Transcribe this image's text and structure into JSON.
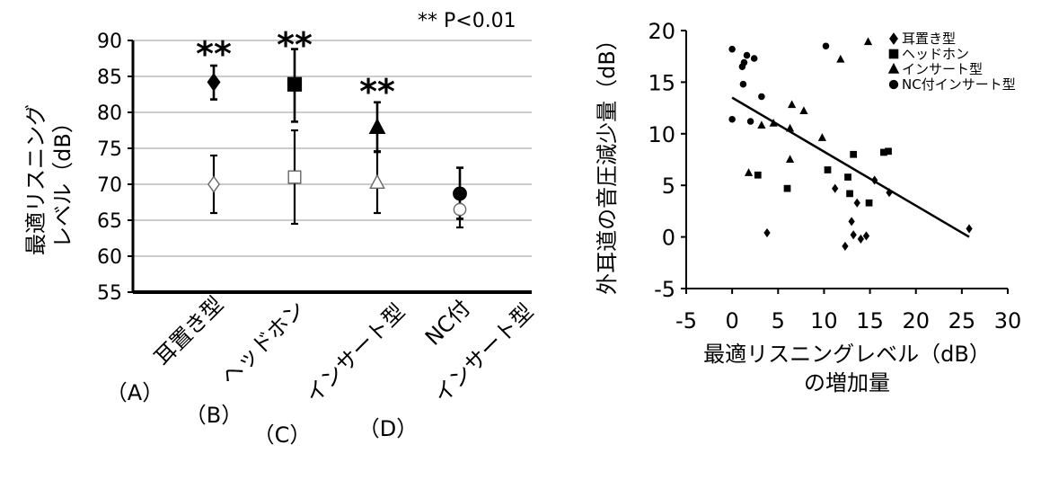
{
  "chart_data": [
    {
      "type": "errorbar",
      "annotation": "** P<0.01",
      "ylabel_lines": [
        "最適リスニング",
        "レベル（dB）"
      ],
      "ylim": [
        55,
        90
      ],
      "yticks": [
        "55",
        "60",
        "65",
        "70",
        "75",
        "80",
        "85",
        "90"
      ],
      "grid": true,
      "categories": [
        {
          "letter": "（A）",
          "name": "耳置き型",
          "name2": ""
        },
        {
          "letter": "（B）",
          "name": "ヘッドホン",
          "name2": ""
        },
        {
          "letter": "（C）",
          "name": "インサート型",
          "name2": ""
        },
        {
          "letter": "（D）",
          "name": "NC付",
          "name2": "インサート型"
        }
      ],
      "significance": [
        "**",
        "**",
        "**",
        ""
      ],
      "series": [
        {
          "style": "open",
          "markers": [
            "diamond",
            "square",
            "triangle",
            "circle"
          ],
          "means": [
            70.0,
            71.0,
            70.2,
            66.5
          ],
          "lower": [
            66.0,
            64.5,
            66.0,
            64.0
          ],
          "upper": [
            74.0,
            77.5,
            74.6,
            68.0
          ]
        },
        {
          "style": "filled",
          "markers": [
            "diamond",
            "square",
            "triangle",
            "circle"
          ],
          "means": [
            84.2,
            83.9,
            77.9,
            68.7
          ],
          "lower": [
            81.8,
            78.7,
            74.5,
            65.2
          ],
          "upper": [
            86.5,
            88.8,
            81.4,
            72.3
          ]
        }
      ]
    },
    {
      "type": "scatter",
      "xlabel_lines": [
        "最適リスニングレベル（dB）",
        "の増加量"
      ],
      "ylabel": "外耳道の音圧減少量（dB）",
      "xlim": [
        -5,
        30
      ],
      "ylim": [
        -5,
        20
      ],
      "xticks": [
        "-5",
        "0",
        "5",
        "10",
        "15",
        "20",
        "25",
        "30"
      ],
      "yticks": [
        "-5",
        "0",
        "5",
        "10",
        "15",
        "20"
      ],
      "legend_position": "top-right",
      "legend": [
        {
          "marker": "diamond",
          "label": "耳置き型"
        },
        {
          "marker": "square",
          "label": "ヘッドホン"
        },
        {
          "marker": "triangle",
          "label": "インサート型"
        },
        {
          "marker": "circle",
          "label": "NC付インサート型"
        }
      ],
      "series": [
        {
          "marker": "diamond",
          "points": [
            [
              3.8,
              0.4
            ],
            [
              11.2,
              4.7
            ],
            [
              12.3,
              -0.9
            ],
            [
              13.0,
              1.5
            ],
            [
              13.2,
              0.2
            ],
            [
              13.6,
              3.3
            ],
            [
              14.0,
              -0.2
            ],
            [
              14.6,
              0.1
            ],
            [
              15.5,
              5.5
            ],
            [
              17.1,
              4.3
            ],
            [
              25.8,
              0.8
            ]
          ]
        },
        {
          "marker": "square",
          "points": [
            [
              2.8,
              6.0
            ],
            [
              6.0,
              4.7
            ],
            [
              10.4,
              6.5
            ],
            [
              12.6,
              5.8
            ],
            [
              12.8,
              4.2
            ],
            [
              13.2,
              8.0
            ],
            [
              14.9,
              3.3
            ],
            [
              16.5,
              8.2
            ],
            [
              17.0,
              8.3
            ]
          ]
        },
        {
          "marker": "triangle",
          "points": [
            [
              1.8,
              6.2
            ],
            [
              3.2,
              10.8
            ],
            [
              4.5,
              11.0
            ],
            [
              6.3,
              7.5
            ],
            [
              6.3,
              10.5
            ],
            [
              6.5,
              12.8
            ],
            [
              7.8,
              12.2
            ],
            [
              9.8,
              9.6
            ],
            [
              11.8,
              17.2
            ],
            [
              14.8,
              18.9
            ]
          ]
        },
        {
          "marker": "circle",
          "points": [
            [
              0.0,
              18.2
            ],
            [
              0.0,
              11.4
            ],
            [
              1.1,
              16.5
            ],
            [
              1.2,
              14.8
            ],
            [
              1.3,
              16.9
            ],
            [
              1.6,
              17.6
            ],
            [
              2.0,
              11.2
            ],
            [
              2.4,
              17.3
            ],
            [
              3.2,
              13.6
            ],
            [
              10.2,
              18.5
            ]
          ]
        }
      ],
      "trendline": {
        "x": [
          0.0,
          25.8
        ],
        "y": [
          13.5,
          0.0
        ]
      }
    }
  ]
}
